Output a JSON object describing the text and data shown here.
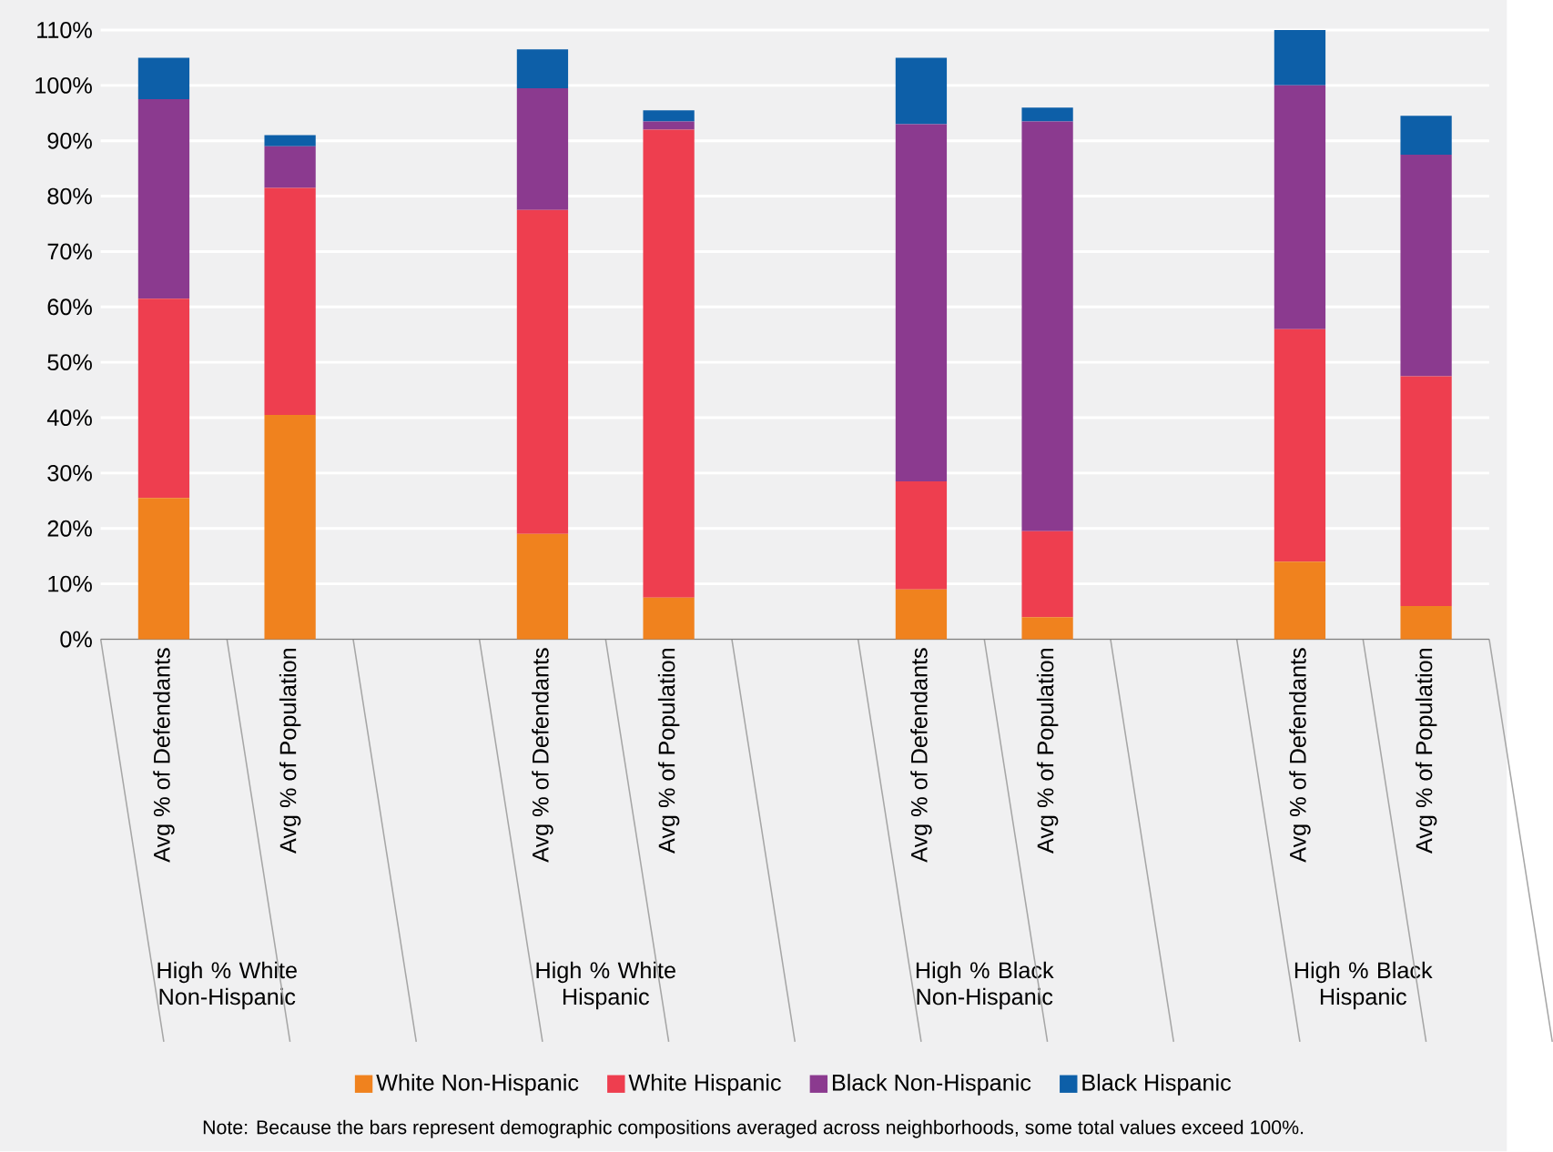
{
  "chart_data": {
    "type": "bar",
    "stacked": true,
    "categories": [
      "Avg % of Defendants",
      "Avg % of Population",
      null,
      "Avg % of Defendants",
      "Avg % of Population",
      null,
      "Avg % of Defendants",
      "Avg % of Population",
      null,
      "Avg % of Defendants",
      "Avg % of Population"
    ],
    "series": [
      {
        "name": "White Non-Hispanic",
        "color": "#f0821e",
        "values": [
          25.5,
          40.5,
          null,
          19,
          7.5,
          null,
          9,
          4,
          null,
          14,
          6
        ]
      },
      {
        "name": "White Hispanic",
        "color": "#ee3e4f",
        "values": [
          36,
          41,
          null,
          58.5,
          84.5,
          null,
          19.5,
          15.5,
          null,
          42,
          41.5
        ]
      },
      {
        "name": "Black Non-Hispanic",
        "color": "#8b3a8f",
        "values": [
          36,
          7.5,
          null,
          22,
          1.5,
          null,
          64.5,
          74,
          null,
          44,
          40
        ]
      },
      {
        "name": "Black Hispanic",
        "color": "#0d5fa8",
        "values": [
          7.5,
          2,
          null,
          7,
          2,
          null,
          12,
          2.5,
          null,
          10,
          7
        ]
      }
    ],
    "ylim": [
      0,
      110
    ],
    "yticks": [
      {
        "value": 0,
        "label": "0%"
      },
      {
        "value": 10,
        "label": "10%"
      },
      {
        "value": 20,
        "label": "20%"
      },
      {
        "value": 30,
        "label": "30%"
      },
      {
        "value": 40,
        "label": "40%"
      },
      {
        "value": 50,
        "label": "50%"
      },
      {
        "value": 60,
        "label": "60%"
      },
      {
        "value": 70,
        "label": "70%"
      },
      {
        "value": 80,
        "label": "80%"
      },
      {
        "value": 90,
        "label": "90%"
      },
      {
        "value": 100,
        "label": "100%"
      },
      {
        "value": 110,
        "label": "110%"
      }
    ],
    "grid": "y",
    "legend": "bottom",
    "annotations": [
      "High % White Non-Hispanic",
      "High % White Hispanic",
      "High % Black Non-Hispanic",
      "High % Black Hispanic",
      "Note: Because the bars represent demographic compositions averaged across neighborhoods, some total values exceed 100%."
    ]
  }
}
